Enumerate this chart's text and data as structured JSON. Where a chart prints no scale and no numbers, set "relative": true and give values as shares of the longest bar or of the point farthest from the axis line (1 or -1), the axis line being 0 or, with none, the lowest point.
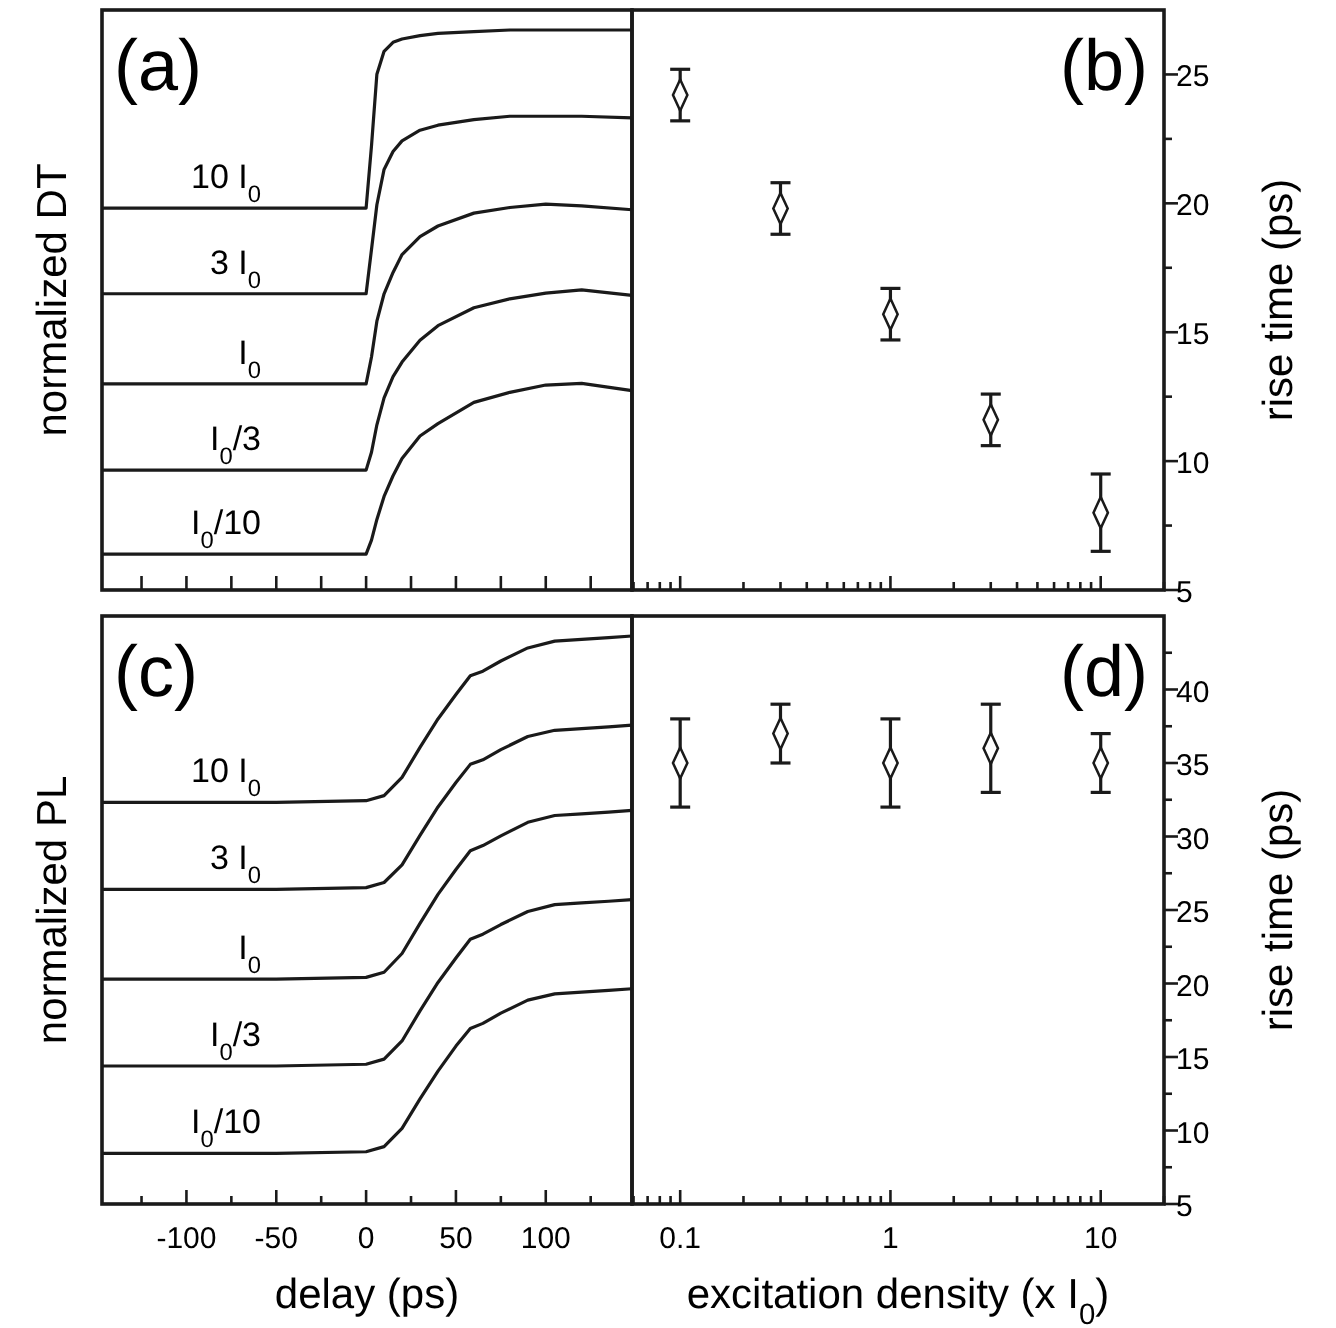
{
  "chart_data": [
    {
      "type": "line",
      "ylabel": "normalized DT",
      "annotations": [
        "(a)"
      ],
      "relative": true,
      "tick_labels": false,
      "xlim": [
        -147,
        148
      ],
      "xticks": [
        -125,
        -100,
        -75,
        -50,
        -25,
        0,
        25,
        50,
        75,
        100,
        125
      ],
      "x": [
        -147,
        -100,
        -50,
        0,
        3,
        6,
        10,
        15,
        20,
        30,
        40,
        60,
        80,
        100,
        120,
        148
      ],
      "series": [
        {
          "name": "10 I$_{0}$",
          "color": "#1a1a1a",
          "values": [
            0.682,
            0.682,
            0.682,
            0.682,
            0.793,
            0.921,
            0.962,
            0.978,
            0.984,
            0.99,
            0.994,
            0.997,
            1,
            1,
            1,
            1
          ]
        },
        {
          "name": "3 I$_{0}$",
          "color": "#1a1a1a",
          "values": [
            0.529,
            0.529,
            0.529,
            0.529,
            0.608,
            0.688,
            0.751,
            0.783,
            0.802,
            0.821,
            0.83,
            0.84,
            0.846,
            0.846,
            0.846,
            0.843
          ]
        },
        {
          "name": "I$_{0}$",
          "color": "#1a1a1a",
          "values": [
            0.368,
            0.368,
            0.368,
            0.368,
            0.416,
            0.48,
            0.529,
            0.567,
            0.599,
            0.631,
            0.65,
            0.673,
            0.683,
            0.689,
            0.686,
            0.679
          ]
        },
        {
          "name": "I$_{0}$/3",
          "color": "#1a1a1a",
          "values": [
            0.214,
            0.214,
            0.214,
            0.214,
            0.246,
            0.295,
            0.343,
            0.381,
            0.407,
            0.446,
            0.472,
            0.504,
            0.52,
            0.53,
            0.536,
            0.526
          ]
        },
        {
          "name": "I$_{0}$/10",
          "color": "#1a1a1a",
          "values": [
            0.064,
            0.064,
            0.064,
            0.064,
            0.089,
            0.126,
            0.167,
            0.204,
            0.235,
            0.275,
            0.297,
            0.335,
            0.353,
            0.366,
            0.369,
            0.356
          ]
        }
      ]
    },
    {
      "type": "scatter",
      "ylabel": "rise time (ps)",
      "annotations": [
        "(b)"
      ],
      "log": "x",
      "tick_labels": "y",
      "marker": "diamond",
      "xlim": [
        0.059,
        20
      ],
      "ylim": [
        5,
        27.5
      ],
      "xticks": [
        {
          "value": 0.06,
          "label": null
        },
        {
          "value": 0.07,
          "label": null
        },
        {
          "value": 0.08,
          "label": null
        },
        {
          "value": 0.09,
          "label": null
        },
        0.1,
        {
          "value": 0.2,
          "label": null
        },
        {
          "value": 0.3,
          "label": null
        },
        {
          "value": 0.4,
          "label": null
        },
        {
          "value": 0.5,
          "label": null
        },
        {
          "value": 0.6,
          "label": null
        },
        {
          "value": 0.7,
          "label": null
        },
        {
          "value": 0.8,
          "label": null
        },
        {
          "value": 0.9,
          "label": null
        },
        1,
        {
          "value": 2,
          "label": null
        },
        {
          "value": 3,
          "label": null
        },
        {
          "value": 4,
          "label": null
        },
        {
          "value": 5,
          "label": null
        },
        {
          "value": 6,
          "label": null
        },
        {
          "value": 7,
          "label": null
        },
        {
          "value": 8,
          "label": null
        },
        {
          "value": 9,
          "label": null
        },
        10,
        {
          "value": 20,
          "label": null
        }
      ],
      "yticks": [
        5,
        {
          "value": 7.5,
          "label": null
        },
        10,
        {
          "value": 12.5,
          "label": null
        },
        15,
        {
          "value": 17.5,
          "label": null
        },
        20,
        {
          "value": 22.5,
          "label": null
        },
        25
      ],
      "x": [
        0.1,
        0.3,
        1,
        3,
        10
      ],
      "series": [
        {
          "color": "#1a1a1a",
          "values": [
            24.2,
            19.8,
            15.7,
            11.6,
            8.0
          ],
          "errors": [
            1,
            1,
            1,
            1,
            1.5
          ]
        }
      ]
    },
    {
      "type": "line",
      "ylabel": "normalized PL",
      "xlabel": "delay (ps)",
      "annotations": [
        "(c)"
      ],
      "relative": true,
      "tick_labels": "x",
      "xlim": [
        -147,
        148
      ],
      "xticks": [
        {
          "value": -125,
          "label": null
        },
        -100,
        {
          "value": -75,
          "label": null
        },
        -50,
        {
          "value": -25,
          "label": null
        },
        0,
        {
          "value": 25,
          "label": null
        },
        50,
        {
          "value": 75,
          "label": null
        },
        100,
        {
          "value": 125,
          "label": null
        }
      ],
      "x": [
        -147,
        -100,
        -50,
        0,
        10,
        20,
        30,
        40,
        50,
        58,
        65,
        75,
        90,
        105,
        120,
        135,
        148
      ],
      "series": [
        {
          "name": "10 I$_{0}$",
          "color": "#1a1a1a",
          "values": [
            0.707,
            0.707,
            0.707,
            0.71,
            0.719,
            0.751,
            0.804,
            0.854,
            0.897,
            0.93,
            0.938,
            0.956,
            0.979,
            0.991,
            0.994,
            0.997,
            1
          ]
        },
        {
          "name": "3 I$_{0}$",
          "color": "#1a1a1a",
          "values": [
            0.554,
            0.554,
            0.554,
            0.557,
            0.566,
            0.597,
            0.649,
            0.699,
            0.742,
            0.774,
            0.782,
            0.8,
            0.823,
            0.834,
            0.837,
            0.84,
            0.843
          ]
        },
        {
          "name": "I$_{0}$",
          "color": "#1a1a1a",
          "values": [
            0.396,
            0.396,
            0.396,
            0.399,
            0.408,
            0.441,
            0.494,
            0.545,
            0.589,
            0.622,
            0.631,
            0.648,
            0.672,
            0.684,
            0.687,
            0.69,
            0.693
          ]
        },
        {
          "name": "I$_{0}$/3",
          "color": "#1a1a1a",
          "values": [
            0.243,
            0.243,
            0.243,
            0.246,
            0.255,
            0.287,
            0.34,
            0.39,
            0.433,
            0.466,
            0.475,
            0.492,
            0.515,
            0.527,
            0.53,
            0.533,
            0.536
          ]
        },
        {
          "name": "I$_{0}$/10",
          "color": "#1a1a1a",
          "values": [
            0.089,
            0.089,
            0.089,
            0.092,
            0.101,
            0.133,
            0.185,
            0.234,
            0.278,
            0.309,
            0.318,
            0.336,
            0.359,
            0.37,
            0.373,
            0.376,
            0.379
          ]
        }
      ]
    },
    {
      "type": "scatter",
      "ylabel": "rise time (ps)",
      "xlabel": "excitation density (x I$_{0}$)",
      "annotations": [
        "(d)"
      ],
      "log": "x",
      "marker": "diamond",
      "xlim": [
        0.059,
        20
      ],
      "ylim": [
        5,
        45
      ],
      "xticks": [
        {
          "value": 0.06,
          "label": null
        },
        {
          "value": 0.07,
          "label": null
        },
        {
          "value": 0.08,
          "label": null
        },
        {
          "value": 0.09,
          "label": null
        },
        0.1,
        {
          "value": 0.2,
          "label": null
        },
        {
          "value": 0.3,
          "label": null
        },
        {
          "value": 0.4,
          "label": null
        },
        {
          "value": 0.5,
          "label": null
        },
        {
          "value": 0.6,
          "label": null
        },
        {
          "value": 0.7,
          "label": null
        },
        {
          "value": 0.8,
          "label": null
        },
        {
          "value": 0.9,
          "label": null
        },
        1,
        {
          "value": 2,
          "label": null
        },
        {
          "value": 3,
          "label": null
        },
        {
          "value": 4,
          "label": null
        },
        {
          "value": 5,
          "label": null
        },
        {
          "value": 6,
          "label": null
        },
        {
          "value": 7,
          "label": null
        },
        {
          "value": 8,
          "label": null
        },
        {
          "value": 9,
          "label": null
        },
        10,
        {
          "value": 20,
          "label": null
        }
      ],
      "yticks": [
        5,
        {
          "value": 7.5,
          "label": null
        },
        10,
        {
          "value": 12.5,
          "label": null
        },
        15,
        {
          "value": 17.5,
          "label": null
        },
        20,
        {
          "value": 22.5,
          "label": null
        },
        25,
        {
          "value": 27.5,
          "label": null
        },
        30,
        {
          "value": 32.5,
          "label": null
        },
        35,
        {
          "value": 37.5,
          "label": null
        },
        40,
        {
          "value": 42.5,
          "label": null
        }
      ],
      "x": [
        0.1,
        0.3,
        1,
        3,
        10
      ],
      "series": [
        {
          "color": "#1a1a1a",
          "values": [
            35,
            37,
            35,
            36,
            35
          ],
          "errors": [
            3,
            2,
            3,
            3,
            2
          ]
        }
      ]
    }
  ]
}
